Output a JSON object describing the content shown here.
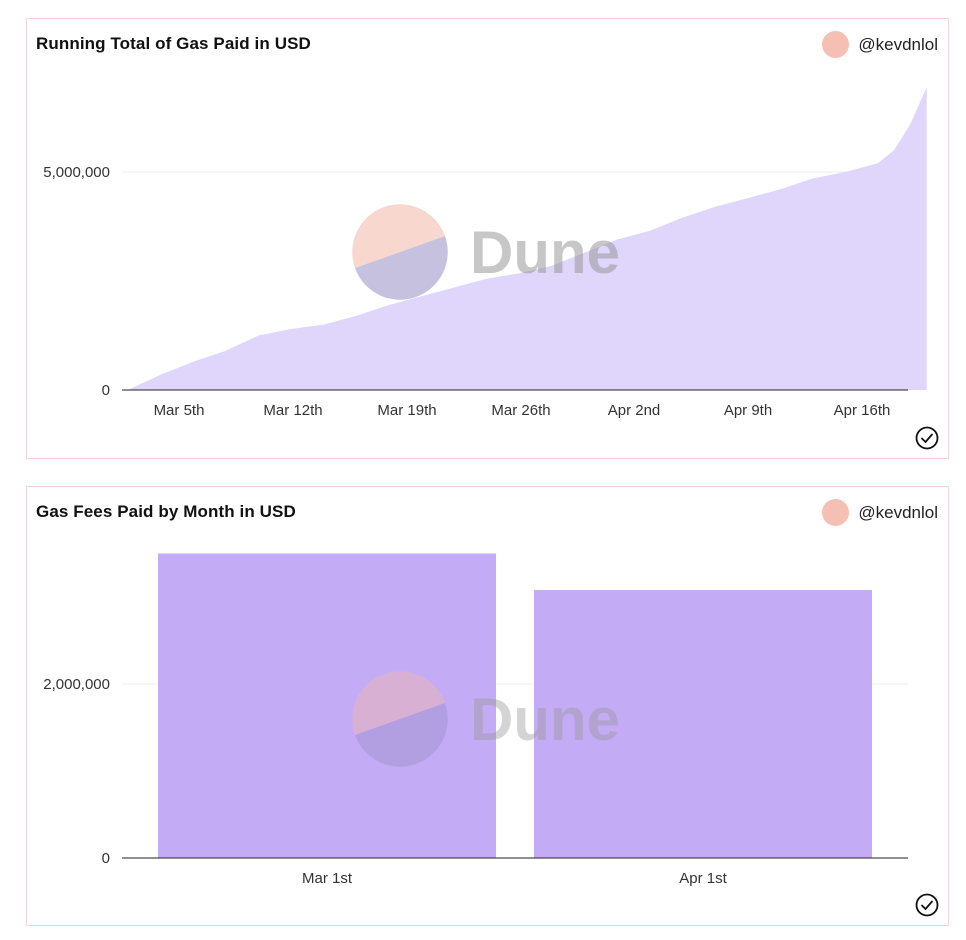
{
  "cards": [
    {
      "title": "Running Total of Gas Paid in USD",
      "author": "@kevdnlol",
      "watermark": "Dune",
      "y_ticks": [
        "0",
        "5,000,000"
      ],
      "x_ticks": [
        "Mar 5th",
        "Mar 12th",
        "Mar 19th",
        "Mar 26th",
        "Apr 2nd",
        "Apr 9th",
        "Apr 16th"
      ]
    },
    {
      "title": "Gas Fees Paid by Month in USD",
      "author": "@kevdnlol",
      "watermark": "Dune",
      "y_ticks": [
        "0",
        "2,000,000"
      ],
      "x_ticks": [
        "Mar 1st",
        "Apr 1st"
      ]
    }
  ],
  "colors": {
    "area": "#e0d5fb",
    "bar": "#c4abf5",
    "avatar": "#f5bfb3",
    "border": "#f0d3dd"
  },
  "chart_data": [
    {
      "type": "area",
      "title": "Running Total of Gas Paid in USD",
      "x_start": "Mar 1st",
      "x": [
        "Mar 1st",
        "Mar 3rd",
        "Mar 5th",
        "Mar 7th",
        "Mar 9th",
        "Mar 11th",
        "Mar 13th",
        "Mar 15th",
        "Mar 17th",
        "Mar 19th",
        "Mar 21st",
        "Mar 23rd",
        "Mar 25th",
        "Mar 27th",
        "Mar 29th",
        "Mar 31st",
        "Apr 2nd",
        "Apr 4th",
        "Apr 6th",
        "Apr 8th",
        "Apr 10th",
        "Apr 12th",
        "Apr 14th",
        "Apr 16th",
        "Apr 17th",
        "Apr 18th",
        "Apr 19th"
      ],
      "values": [
        0,
        350000,
        650000,
        900000,
        1250000,
        1400000,
        1500000,
        1700000,
        1950000,
        2150000,
        2350000,
        2550000,
        2680000,
        2850000,
        3150000,
        3450000,
        3650000,
        3950000,
        4200000,
        4400000,
        4600000,
        4850000,
        5000000,
        5200000,
        5500000,
        6100000,
        6950000
      ],
      "ylim": [
        0,
        7000000
      ],
      "y_ticks": [
        0,
        5000000
      ],
      "grid": true
    },
    {
      "type": "bar",
      "title": "Gas Fees Paid by Month in USD",
      "categories": [
        "Mar 1st",
        "Apr 1st"
      ],
      "values": [
        3500000,
        3080000
      ],
      "ylim": [
        0,
        3500000
      ],
      "y_ticks": [
        0,
        2000000
      ],
      "grid": true
    }
  ]
}
